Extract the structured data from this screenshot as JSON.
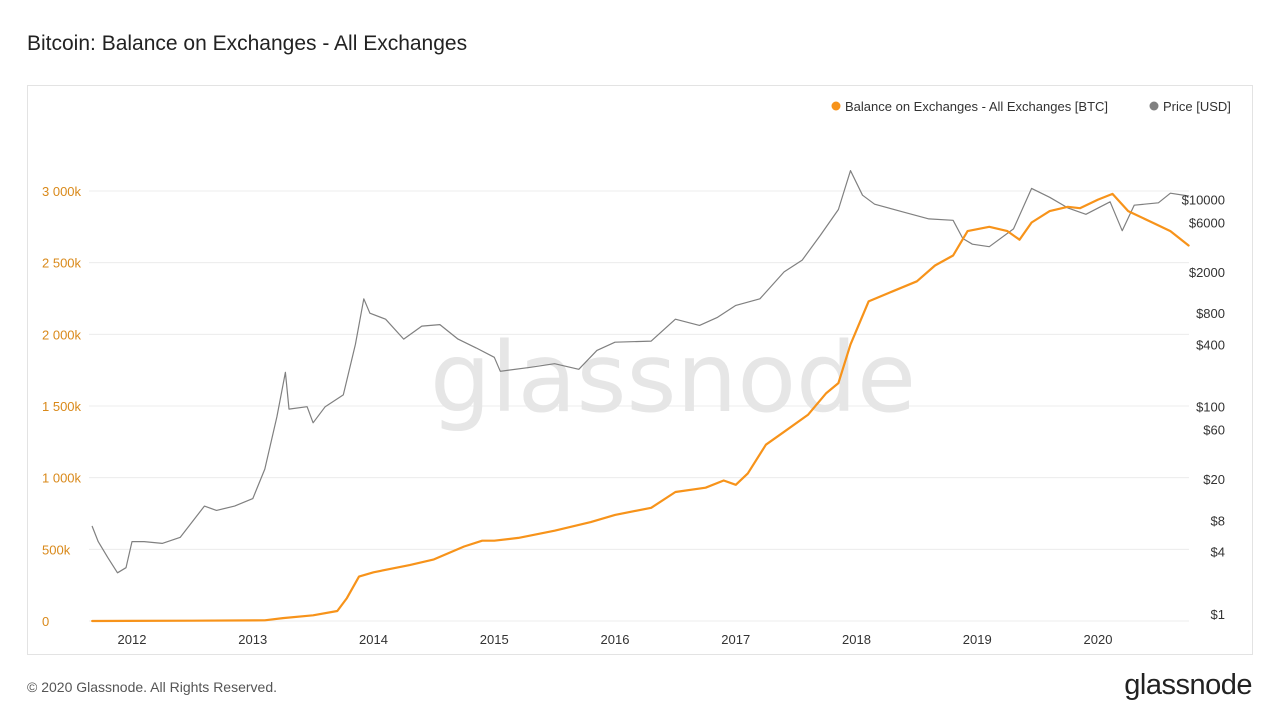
{
  "title": "Bitcoin: Balance on Exchanges - All Exchanges",
  "footer": "© 2020 Glassnode. All Rights Reserved.",
  "brand": "glassnode",
  "watermark": "glassnode",
  "colors": {
    "balance": "#f7931a",
    "price": "#808080",
    "left_axis": "#d9891a",
    "grid": "#ececec"
  },
  "chart_data": {
    "type": "line",
    "grid": true,
    "legend_position": "top-right",
    "x_ticks": [
      "2012",
      "2013",
      "2014",
      "2015",
      "2016",
      "2017",
      "2018",
      "2019",
      "2020"
    ],
    "y_left": {
      "ticks": [
        0,
        500,
        1000,
        1500,
        2000,
        2500,
        3000
      ],
      "tick_labels": [
        "0",
        "500k",
        "1 000k",
        "1 500k",
        "2 000k",
        "2 500k",
        "3 000k"
      ],
      "range": [
        0,
        3000
      ],
      "unit": "k BTC"
    },
    "y_right": {
      "scale": "log",
      "ticks": [
        1,
        4,
        8,
        20,
        60,
        100,
        400,
        800,
        2000,
        6000,
        10000
      ],
      "tick_labels": [
        "$1",
        "$4",
        "$8",
        "$20",
        "$60",
        "$100",
        "$400",
        "$800",
        "$2000",
        "$6000",
        "$10000"
      ],
      "range": [
        1,
        22000
      ]
    },
    "series": [
      {
        "name": "Balance on Exchanges - All Exchanges [BTC]",
        "axis": "left",
        "color": "#f7931a",
        "points": [
          [
            2011.67,
            0
          ],
          [
            2012.5,
            2
          ],
          [
            2013.1,
            5
          ],
          [
            2013.25,
            20
          ],
          [
            2013.5,
            40
          ],
          [
            2013.7,
            70
          ],
          [
            2013.78,
            160
          ],
          [
            2013.88,
            310
          ],
          [
            2014.0,
            340
          ],
          [
            2014.3,
            390
          ],
          [
            2014.5,
            430
          ],
          [
            2014.75,
            520
          ],
          [
            2014.9,
            560
          ],
          [
            2015.0,
            560
          ],
          [
            2015.2,
            580
          ],
          [
            2015.5,
            630
          ],
          [
            2015.8,
            690
          ],
          [
            2016.0,
            740
          ],
          [
            2016.3,
            790
          ],
          [
            2016.5,
            900
          ],
          [
            2016.75,
            930
          ],
          [
            2016.9,
            980
          ],
          [
            2017.0,
            950
          ],
          [
            2017.1,
            1030
          ],
          [
            2017.25,
            1230
          ],
          [
            2017.4,
            1320
          ],
          [
            2017.6,
            1440
          ],
          [
            2017.75,
            1590
          ],
          [
            2017.85,
            1660
          ],
          [
            2017.95,
            1930
          ],
          [
            2018.1,
            2230
          ],
          [
            2018.3,
            2300
          ],
          [
            2018.5,
            2370
          ],
          [
            2018.65,
            2480
          ],
          [
            2018.8,
            2550
          ],
          [
            2018.92,
            2720
          ],
          [
            2019.1,
            2750
          ],
          [
            2019.25,
            2720
          ],
          [
            2019.35,
            2660
          ],
          [
            2019.45,
            2780
          ],
          [
            2019.6,
            2860
          ],
          [
            2019.75,
            2890
          ],
          [
            2019.85,
            2880
          ],
          [
            2020.0,
            2940
          ],
          [
            2020.12,
            2980
          ],
          [
            2020.25,
            2860
          ],
          [
            2020.45,
            2780
          ],
          [
            2020.6,
            2720
          ],
          [
            2020.75,
            2620
          ]
        ]
      },
      {
        "name": "Price [USD]",
        "axis": "right",
        "color": "#808080",
        "points": [
          [
            2011.67,
            7
          ],
          [
            2011.72,
            5
          ],
          [
            2011.8,
            3.5
          ],
          [
            2011.88,
            2.5
          ],
          [
            2011.95,
            2.8
          ],
          [
            2012.0,
            5
          ],
          [
            2012.1,
            5
          ],
          [
            2012.25,
            4.8
          ],
          [
            2012.4,
            5.5
          ],
          [
            2012.6,
            11
          ],
          [
            2012.7,
            10
          ],
          [
            2012.85,
            11
          ],
          [
            2013.0,
            13
          ],
          [
            2013.1,
            25
          ],
          [
            2013.2,
            80
          ],
          [
            2013.27,
            215
          ],
          [
            2013.3,
            95
          ],
          [
            2013.45,
            100
          ],
          [
            2013.5,
            70
          ],
          [
            2013.6,
            100
          ],
          [
            2013.75,
            130
          ],
          [
            2013.85,
            400
          ],
          [
            2013.92,
            1100
          ],
          [
            2013.97,
            800
          ],
          [
            2014.1,
            700
          ],
          [
            2014.25,
            450
          ],
          [
            2014.4,
            600
          ],
          [
            2014.55,
            620
          ],
          [
            2014.7,
            450
          ],
          [
            2014.85,
            370
          ],
          [
            2015.0,
            300
          ],
          [
            2015.05,
            220
          ],
          [
            2015.3,
            240
          ],
          [
            2015.5,
            260
          ],
          [
            2015.7,
            230
          ],
          [
            2015.85,
            350
          ],
          [
            2016.0,
            420
          ],
          [
            2016.3,
            430
          ],
          [
            2016.5,
            700
          ],
          [
            2016.7,
            610
          ],
          [
            2016.85,
            730
          ],
          [
            2017.0,
            950
          ],
          [
            2017.2,
            1100
          ],
          [
            2017.4,
            2000
          ],
          [
            2017.55,
            2600
          ],
          [
            2017.7,
            4500
          ],
          [
            2017.85,
            8000
          ],
          [
            2017.95,
            19000
          ],
          [
            2018.05,
            11000
          ],
          [
            2018.15,
            9000
          ],
          [
            2018.4,
            7500
          ],
          [
            2018.6,
            6500
          ],
          [
            2018.8,
            6300
          ],
          [
            2018.88,
            4200
          ],
          [
            2018.96,
            3700
          ],
          [
            2019.1,
            3500
          ],
          [
            2019.3,
            5200
          ],
          [
            2019.45,
            12800
          ],
          [
            2019.6,
            10500
          ],
          [
            2019.75,
            8300
          ],
          [
            2019.9,
            7200
          ],
          [
            2020.1,
            9500
          ],
          [
            2020.2,
            5000
          ],
          [
            2020.3,
            8800
          ],
          [
            2020.5,
            9300
          ],
          [
            2020.6,
            11500
          ],
          [
            2020.75,
            10800
          ]
        ]
      }
    ]
  }
}
